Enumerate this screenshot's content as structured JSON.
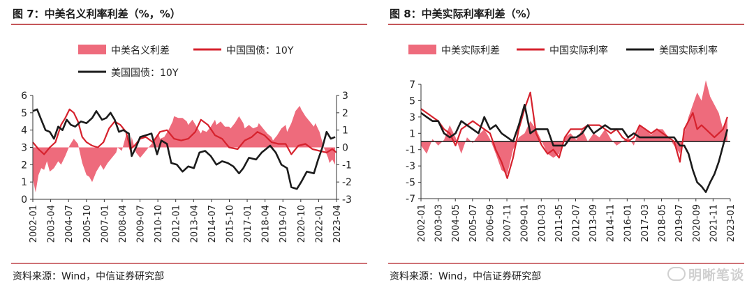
{
  "colors": {
    "rule": "#b21f24",
    "spread_fill": "#ee6b7c",
    "china": "#d6222d",
    "us": "#1b1b1b"
  },
  "watermark": {
    "text": "明晰笔谈",
    "icon": "wechat-icon"
  },
  "charts": [
    {
      "fig_title": "图 7：中美名义利率利差（%，%）",
      "source": "资料来源：Wind，中信证券研究部",
      "chart_data": {
        "type": "area",
        "legend": [
          {
            "name": "中美名义利差",
            "kind": "area"
          },
          {
            "name": "中国国债：10Y",
            "kind": "line"
          },
          {
            "name": "美国国债：10Y",
            "kind": "line"
          }
        ],
        "y_left": {
          "min": 0,
          "max": 6,
          "ticks": [
            "6",
            "5",
            "4",
            "3",
            "2",
            "1",
            "0"
          ]
        },
        "y_right": {
          "min": -3,
          "max": 3,
          "ticks": [
            "3",
            "2",
            "1",
            "0",
            "-1",
            "-2",
            "-3"
          ]
        },
        "x_range": [
          2002.0,
          2023.5
        ],
        "x_ticks": [
          "2002-01",
          "2003-04",
          "2004-07",
          "2005-10",
          "2007-01",
          "2008-04",
          "2009-07",
          "2010-10",
          "2012-01",
          "2013-04",
          "2014-07",
          "2015-10",
          "2017-01",
          "2018-04",
          "2019-07",
          "2020-10",
          "2022-01",
          "2023-04"
        ],
        "series": [
          {
            "name": "中美名义利差",
            "axis": "right",
            "x": [
              2002.0,
              2002.2,
              2002.4,
              2002.6,
              2002.8,
              2003.0,
              2003.2,
              2003.5,
              2003.8,
              2004.0,
              2004.3,
              2004.6,
              2004.9,
              2005.2,
              2005.5,
              2005.8,
              2006.0,
              2006.2,
              2006.5,
              2006.8,
              2007.0,
              2007.3,
              2007.6,
              2007.9,
              2008.0,
              2008.3,
              2008.6,
              2008.9,
              2009.0,
              2009.3,
              2009.6,
              2010.0,
              2010.3,
              2010.6,
              2010.9,
              2011.0,
              2011.3,
              2011.6,
              2011.9,
              2012.0,
              2012.3,
              2012.6,
              2012.9,
              2013.0,
              2013.3,
              2013.6,
              2013.9,
              2014.0,
              2014.3,
              2014.6,
              2014.9,
              2015.0,
              2015.3,
              2015.6,
              2015.9,
              2016.0,
              2016.3,
              2016.6,
              2016.9,
              2017.0,
              2017.3,
              2017.6,
              2017.9,
              2018.0,
              2018.3,
              2018.6,
              2018.9,
              2019.0,
              2019.3,
              2019.6,
              2019.9,
              2020.0,
              2020.3,
              2020.6,
              2020.9,
              2021.0,
              2021.3,
              2021.6,
              2021.9,
              2022.0,
              2022.3,
              2022.6,
              2022.9,
              2023.0,
              2023.2,
              2023.4
            ],
            "values": [
              -1.8,
              -2.6,
              -1.6,
              -1.2,
              -1.3,
              -0.8,
              -1.4,
              -1.2,
              -0.8,
              -1.0,
              -0.5,
              0.1,
              0.5,
              0.2,
              -0.9,
              -1.6,
              -1.7,
              -2.0,
              -1.4,
              -1.0,
              -1.3,
              -0.9,
              -0.6,
              -0.3,
              0.0,
              -0.2,
              0.7,
              -0.3,
              0.6,
              -0.3,
              -0.6,
              -0.2,
              0.1,
              0.4,
              0.8,
              0.5,
              0.6,
              1.0,
              1.5,
              1.8,
              1.7,
              1.7,
              1.5,
              1.3,
              1.6,
              1.2,
              0.8,
              1.0,
              0.9,
              1.2,
              1.6,
              1.3,
              1.5,
              1.2,
              1.2,
              1.1,
              1.4,
              1.8,
              1.4,
              1.1,
              1.3,
              1.1,
              1.2,
              1.4,
              1.1,
              0.8,
              0.6,
              0.4,
              0.7,
              1.1,
              1.3,
              0.9,
              1.4,
              2.1,
              2.4,
              2.2,
              1.8,
              1.5,
              1.2,
              1.4,
              0.9,
              0.0,
              -0.6,
              -0.9,
              -0.7,
              -1.0
            ]
          },
          {
            "name": "中国国债：10Y",
            "axis": "left",
            "x": [
              2002.0,
              2002.4,
              2002.8,
              2003.2,
              2003.6,
              2004.0,
              2004.3,
              2004.6,
              2004.9,
              2005.2,
              2005.5,
              2005.8,
              2006.2,
              2006.6,
              2007.0,
              2007.4,
              2007.8,
              2008.2,
              2008.6,
              2008.9,
              2009.2,
              2009.6,
              2010.0,
              2010.5,
              2011.0,
              2011.5,
              2012.0,
              2012.5,
              2013.0,
              2013.5,
              2013.9,
              2014.4,
              2014.9,
              2015.4,
              2015.9,
              2016.5,
              2017.0,
              2017.5,
              2017.9,
              2018.4,
              2018.9,
              2019.4,
              2019.9,
              2020.3,
              2020.8,
              2021.3,
              2021.8,
              2022.3,
              2022.8,
              2023.2,
              2023.5
            ],
            "values": [
              3.3,
              2.9,
              2.6,
              3.0,
              3.3,
              4.3,
              4.7,
              5.2,
              5.0,
              4.5,
              3.6,
              3.3,
              3.1,
              3.0,
              3.3,
              4.1,
              4.5,
              4.3,
              3.9,
              2.9,
              3.1,
              3.5,
              3.6,
              3.3,
              3.9,
              4.0,
              3.5,
              3.4,
              3.5,
              3.9,
              4.6,
              4.3,
              3.7,
              3.5,
              3.0,
              2.9,
              3.4,
              3.6,
              3.9,
              3.7,
              3.3,
              3.2,
              3.2,
              2.6,
              3.1,
              3.2,
              2.9,
              2.8,
              2.7,
              2.9,
              2.7
            ]
          },
          {
            "name": "美国国债：10Y",
            "axis": "left",
            "x": [
              2002.0,
              2002.3,
              2002.6,
              2002.9,
              2003.2,
              2003.5,
              2003.8,
              2004.1,
              2004.4,
              2004.7,
              2005.0,
              2005.4,
              2005.8,
              2006.2,
              2006.5,
              2006.9,
              2007.2,
              2007.5,
              2007.8,
              2008.1,
              2008.4,
              2008.8,
              2009.0,
              2009.3,
              2009.6,
              2010.0,
              2010.4,
              2010.8,
              2011.1,
              2011.5,
              2011.8,
              2012.2,
              2012.6,
              2013.0,
              2013.4,
              2013.8,
              2014.2,
              2014.6,
              2015.0,
              2015.4,
              2015.8,
              2016.2,
              2016.6,
              2016.9,
              2017.3,
              2017.8,
              2018.2,
              2018.8,
              2019.2,
              2019.6,
              2020.0,
              2020.3,
              2020.7,
              2021.0,
              2021.4,
              2021.9,
              2022.2,
              2022.5,
              2022.8,
              2023.1,
              2023.4
            ],
            "values": [
              5.1,
              5.2,
              4.6,
              4.0,
              3.9,
              3.5,
              4.2,
              4.0,
              4.6,
              4.3,
              4.2,
              4.5,
              4.4,
              4.7,
              5.1,
              4.6,
              4.7,
              5.0,
              4.6,
              3.9,
              4.0,
              3.8,
              2.5,
              3.0,
              3.6,
              3.7,
              3.8,
              2.6,
              3.4,
              3.2,
              2.1,
              2.0,
              1.6,
              1.9,
              1.8,
              2.7,
              2.8,
              2.5,
              2.0,
              2.2,
              2.1,
              1.9,
              1.5,
              1.8,
              2.4,
              2.3,
              2.7,
              3.1,
              2.7,
              2.0,
              1.8,
              0.7,
              0.6,
              1.0,
              1.6,
              1.5,
              2.3,
              3.0,
              3.9,
              3.5,
              3.6
            ]
          }
        ]
      }
    },
    {
      "fig_title": "图 8：中美实际利率利差（%）",
      "source": "资料来源：Wind，中信证券研究部",
      "chart_data": {
        "type": "area",
        "legend": [
          {
            "name": "中美实际利差",
            "kind": "area"
          },
          {
            "name": "中国实际利率",
            "kind": "line"
          },
          {
            "name": "美国实际利率",
            "kind": "line"
          }
        ],
        "y_left": {
          "min": -7,
          "max": 7,
          "ticks": [
            "7",
            "5",
            "3",
            "1",
            "-1",
            "-3",
            "-5",
            "-7"
          ]
        },
        "x_range": [
          2002.0,
          2023.5
        ],
        "x_ticks": [
          "2002-01",
          "2003-03",
          "2004-05",
          "2005-07",
          "2006-09",
          "2007-11",
          "2009-01",
          "2010-03",
          "2011-05",
          "2012-07",
          "2013-09",
          "2014-11",
          "2016-01",
          "2017-03",
          "2018-05",
          "2019-07",
          "2020-09",
          "2021-11",
          "2023-01"
        ],
        "series": [
          {
            "name": "中美实际利差",
            "x": [
              2002.0,
              2002.4,
              2002.8,
              2003.2,
              2003.6,
              2004.0,
              2004.4,
              2004.8,
              2005.2,
              2005.6,
              2006.0,
              2006.4,
              2006.8,
              2007.2,
              2007.6,
              2008.0,
              2008.4,
              2008.8,
              2009.2,
              2009.6,
              2010.0,
              2010.4,
              2010.8,
              2011.2,
              2011.6,
              2012.0,
              2012.4,
              2012.8,
              2013.2,
              2013.6,
              2014.0,
              2014.4,
              2014.8,
              2015.2,
              2015.6,
              2016.0,
              2016.4,
              2016.8,
              2017.2,
              2017.6,
              2018.0,
              2018.4,
              2018.8,
              2019.2,
              2019.6,
              2020.0,
              2020.3,
              2020.6,
              2020.9,
              2021.2,
              2021.5,
              2021.8,
              2022.1,
              2022.4,
              2022.7,
              2023.0,
              2023.3
            ],
            "values": [
              -0.5,
              -1.5,
              0.3,
              -0.5,
              0.2,
              2.0,
              0.5,
              -1.5,
              0.5,
              -0.2,
              0.8,
              1.5,
              0.3,
              -1.5,
              -3.5,
              -4.0,
              -1.0,
              0.5,
              1.0,
              2.5,
              1.5,
              0.0,
              -1.5,
              -2.0,
              -1.5,
              0.5,
              1.0,
              0.2,
              1.5,
              0.0,
              1.0,
              0.5,
              1.5,
              0.3,
              -0.5,
              0.0,
              0.5,
              -0.5,
              2.0,
              1.5,
              0.8,
              1.5,
              1.5,
              0.5,
              -0.5,
              -1.5,
              1.0,
              3.0,
              4.5,
              6.0,
              5.0,
              7.5,
              5.5,
              4.5,
              3.5,
              1.5,
              3.0
            ]
          },
          {
            "name": "中国实际利率",
            "x": [
              2002.0,
              2002.4,
              2002.8,
              2003.2,
              2003.6,
              2004.0,
              2004.4,
              2004.8,
              2005.2,
              2005.6,
              2006.0,
              2006.4,
              2006.8,
              2007.2,
              2007.6,
              2008.0,
              2008.4,
              2008.8,
              2009.2,
              2009.6,
              2010.0,
              2010.4,
              2010.8,
              2011.2,
              2011.6,
              2012.0,
              2012.4,
              2012.8,
              2013.2,
              2013.6,
              2014.0,
              2014.4,
              2014.8,
              2015.2,
              2015.6,
              2016.0,
              2016.4,
              2016.8,
              2017.2,
              2017.6,
              2018.0,
              2018.4,
              2018.8,
              2019.2,
              2019.6,
              2020.0,
              2020.3,
              2020.6,
              2020.9,
              2021.2,
              2021.5,
              2021.8,
              2022.1,
              2022.4,
              2022.7,
              2023.0,
              2023.3
            ],
            "values": [
              4.0,
              3.5,
              3.0,
              2.5,
              1.5,
              1.0,
              -0.5,
              1.5,
              2.0,
              2.5,
              2.0,
              1.5,
              1.0,
              -1.0,
              -2.5,
              -4.5,
              -2.0,
              1.5,
              4.0,
              6.0,
              1.0,
              -0.5,
              -1.5,
              -1.0,
              -2.0,
              0.5,
              1.5,
              1.5,
              1.5,
              2.0,
              2.0,
              2.0,
              1.5,
              1.0,
              1.5,
              0.5,
              0.0,
              0.5,
              2.0,
              1.5,
              1.0,
              1.5,
              1.0,
              0.5,
              0.0,
              -2.5,
              1.5,
              2.5,
              3.5,
              1.5,
              2.0,
              1.5,
              1.0,
              0.5,
              1.0,
              1.5,
              3.0
            ]
          },
          {
            "name": "美国实际利率",
            "x": [
              2002.0,
              2002.4,
              2002.8,
              2003.2,
              2003.6,
              2004.0,
              2004.4,
              2004.8,
              2005.2,
              2005.6,
              2006.0,
              2006.4,
              2006.8,
              2007.2,
              2007.6,
              2008.0,
              2008.4,
              2008.8,
              2009.2,
              2009.6,
              2010.0,
              2010.4,
              2010.8,
              2011.2,
              2011.6,
              2012.0,
              2012.4,
              2012.8,
              2013.2,
              2013.6,
              2014.0,
              2014.4,
              2014.8,
              2015.2,
              2015.6,
              2016.0,
              2016.4,
              2016.8,
              2017.2,
              2017.6,
              2018.0,
              2018.4,
              2018.8,
              2019.2,
              2019.6,
              2020.0,
              2020.3,
              2020.6,
              2020.9,
              2021.2,
              2021.5,
              2021.8,
              2022.1,
              2022.4,
              2022.7,
              2023.0,
              2023.3
            ],
            "values": [
              3.5,
              3.0,
              2.5,
              2.5,
              1.0,
              0.5,
              1.0,
              2.5,
              2.0,
              1.5,
              1.0,
              3.0,
              1.5,
              2.0,
              1.0,
              0.5,
              0.0,
              2.0,
              4.5,
              1.0,
              1.5,
              1.5,
              1.5,
              -0.5,
              -0.5,
              -0.5,
              0.5,
              0.5,
              1.0,
              2.0,
              1.0,
              1.5,
              2.0,
              1.5,
              1.5,
              1.5,
              0.5,
              1.0,
              0.5,
              0.5,
              0.5,
              0.5,
              0.5,
              0.5,
              0.5,
              -0.5,
              -0.5,
              -1.5,
              -3.5,
              -5.0,
              -5.5,
              -6.2,
              -5.0,
              -4.0,
              -2.5,
              -0.5,
              1.5
            ]
          }
        ]
      }
    }
  ]
}
